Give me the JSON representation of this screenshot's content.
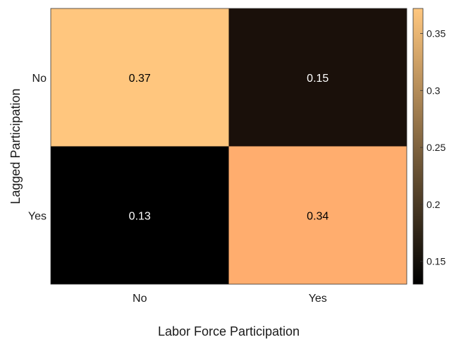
{
  "chart_data": {
    "type": "heatmap",
    "xlabel": "Labor Force Participation",
    "ylabel": "Lagged Participation",
    "x_categories": [
      "No",
      "Yes"
    ],
    "y_categories": [
      "No",
      "Yes"
    ],
    "values": [
      [
        0.37,
        0.15
      ],
      [
        0.13,
        0.34
      ]
    ],
    "value_labels": [
      [
        "0.37",
        "0.15"
      ],
      [
        "0.13",
        "0.34"
      ]
    ],
    "colorbar": {
      "range": [
        0.13,
        0.372
      ],
      "ticks": [
        0.15,
        0.2,
        0.25,
        0.3,
        0.35
      ],
      "tick_labels": [
        "0.15",
        "0.2",
        "0.25",
        "0.3",
        "0.35"
      ]
    },
    "colormap": "copper",
    "grid": false
  }
}
